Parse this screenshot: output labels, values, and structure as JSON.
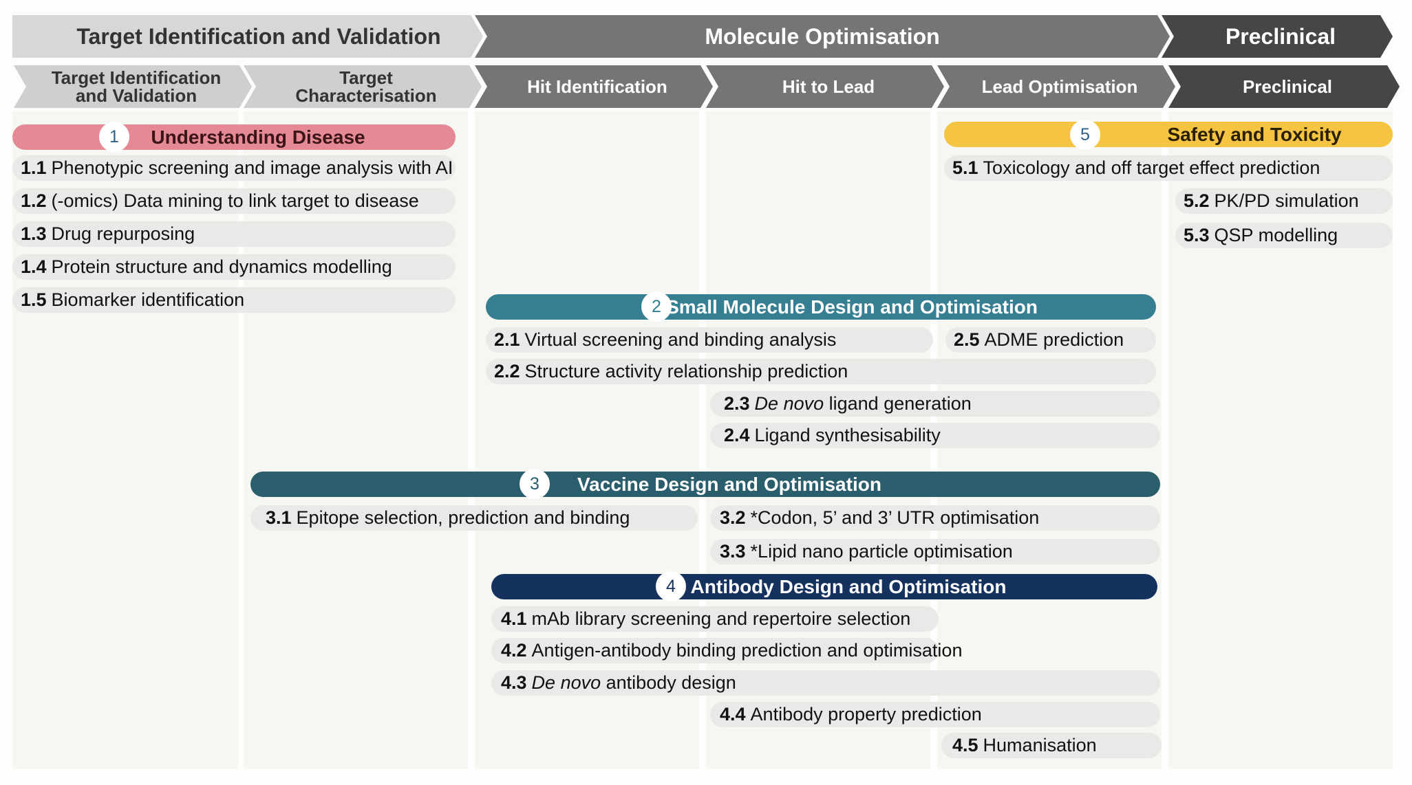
{
  "stages": [
    {
      "label": "Target Identification and Validation",
      "color": "#d7d7d5",
      "text_color": "#333333"
    },
    {
      "label": "Molecule Optimisation",
      "color": "#757575",
      "text_color": "#ffffff"
    },
    {
      "label": "Preclinical",
      "color": "#464646",
      "text_color": "#ffffff"
    }
  ],
  "substages": [
    {
      "label": "Target Identification\nand Validation",
      "color": "#cfcfcd",
      "text_color": "#333333"
    },
    {
      "label": "Target\nCharacterisation",
      "color": "#cfcfcd",
      "text_color": "#333333"
    },
    {
      "label": "Hit Identification",
      "color": "#757575",
      "text_color": "#ffffff"
    },
    {
      "label": "Hit to Lead",
      "color": "#757575",
      "text_color": "#ffffff"
    },
    {
      "label": "Lead Optimisation",
      "color": "#757575",
      "text_color": "#ffffff"
    },
    {
      "label": "Preclinical",
      "color": "#464646",
      "text_color": "#ffffff"
    }
  ],
  "categories": [
    {
      "number": "1",
      "title": "Understanding Disease",
      "color": "#e58a95",
      "text_color": "#3a1418",
      "badge_text_color": "#2c5f8a",
      "items": [
        {
          "num": "1.1",
          "text": "Phenotypic screening and image analysis with AI"
        },
        {
          "num": "1.2",
          "text": "(-omics) Data mining to link target to disease"
        },
        {
          "num": "1.3",
          "text": "Drug repurposing"
        },
        {
          "num": "1.4",
          "text": "Protein structure and dynamics modelling"
        },
        {
          "num": "1.5",
          "text": "Biomarker identification"
        }
      ]
    },
    {
      "number": "2",
      "title": "Small Molecule Design and Optimisation",
      "color": "#367f92",
      "text_color": "#ffffff",
      "badge_text_color": "#367f92",
      "items": [
        {
          "num": "2.1",
          "text": "Virtual screening and binding analysis"
        },
        {
          "num": "2.2",
          "text": "Structure activity relationship prediction"
        },
        {
          "num": "2.3",
          "text_italic": "De novo",
          "text": "ligand generation"
        },
        {
          "num": "2.4",
          "text": "Ligand synthesisability"
        },
        {
          "num": "2.5",
          "text": "ADME prediction"
        }
      ]
    },
    {
      "number": "3",
      "title": "Vaccine Design and Optimisation",
      "color": "#2b5e6c",
      "text_color": "#ffffff",
      "badge_text_color": "#2b5e6c",
      "items": [
        {
          "num": "3.1",
          "text": "Epitope selection, prediction and binding"
        },
        {
          "num": "3.2",
          "text": "*Codon, 5’ and 3’ UTR optimisation"
        },
        {
          "num": "3.3",
          "text": "*Lipid nano particle optimisation"
        }
      ]
    },
    {
      "number": "4",
      "title": "Antibody Design and Optimisation",
      "color": "#15325e",
      "text_color": "#ffffff",
      "badge_text_color": "#15325e",
      "items": [
        {
          "num": "4.1",
          "text": "mAb library screening and repertoire selection"
        },
        {
          "num": "4.2",
          "text": "Antigen-antibody binding prediction and optimisation"
        },
        {
          "num": "4.3",
          "text_italic": "De novo",
          "text": "antibody design"
        },
        {
          "num": "4.4",
          "text": "Antibody property prediction"
        },
        {
          "num": "4.5",
          "text": "Humanisation"
        }
      ]
    },
    {
      "number": "5",
      "title": "Safety and Toxicity",
      "color": "#f5c443",
      "text_color": "#2a2000",
      "badge_text_color": "#2c5f8a",
      "items": [
        {
          "num": "5.1",
          "text": "Toxicology and off target effect prediction"
        },
        {
          "num": "5.2",
          "text": "PK/PD simulation"
        },
        {
          "num": "5.3",
          "text": "QSP modelling"
        }
      ]
    }
  ]
}
